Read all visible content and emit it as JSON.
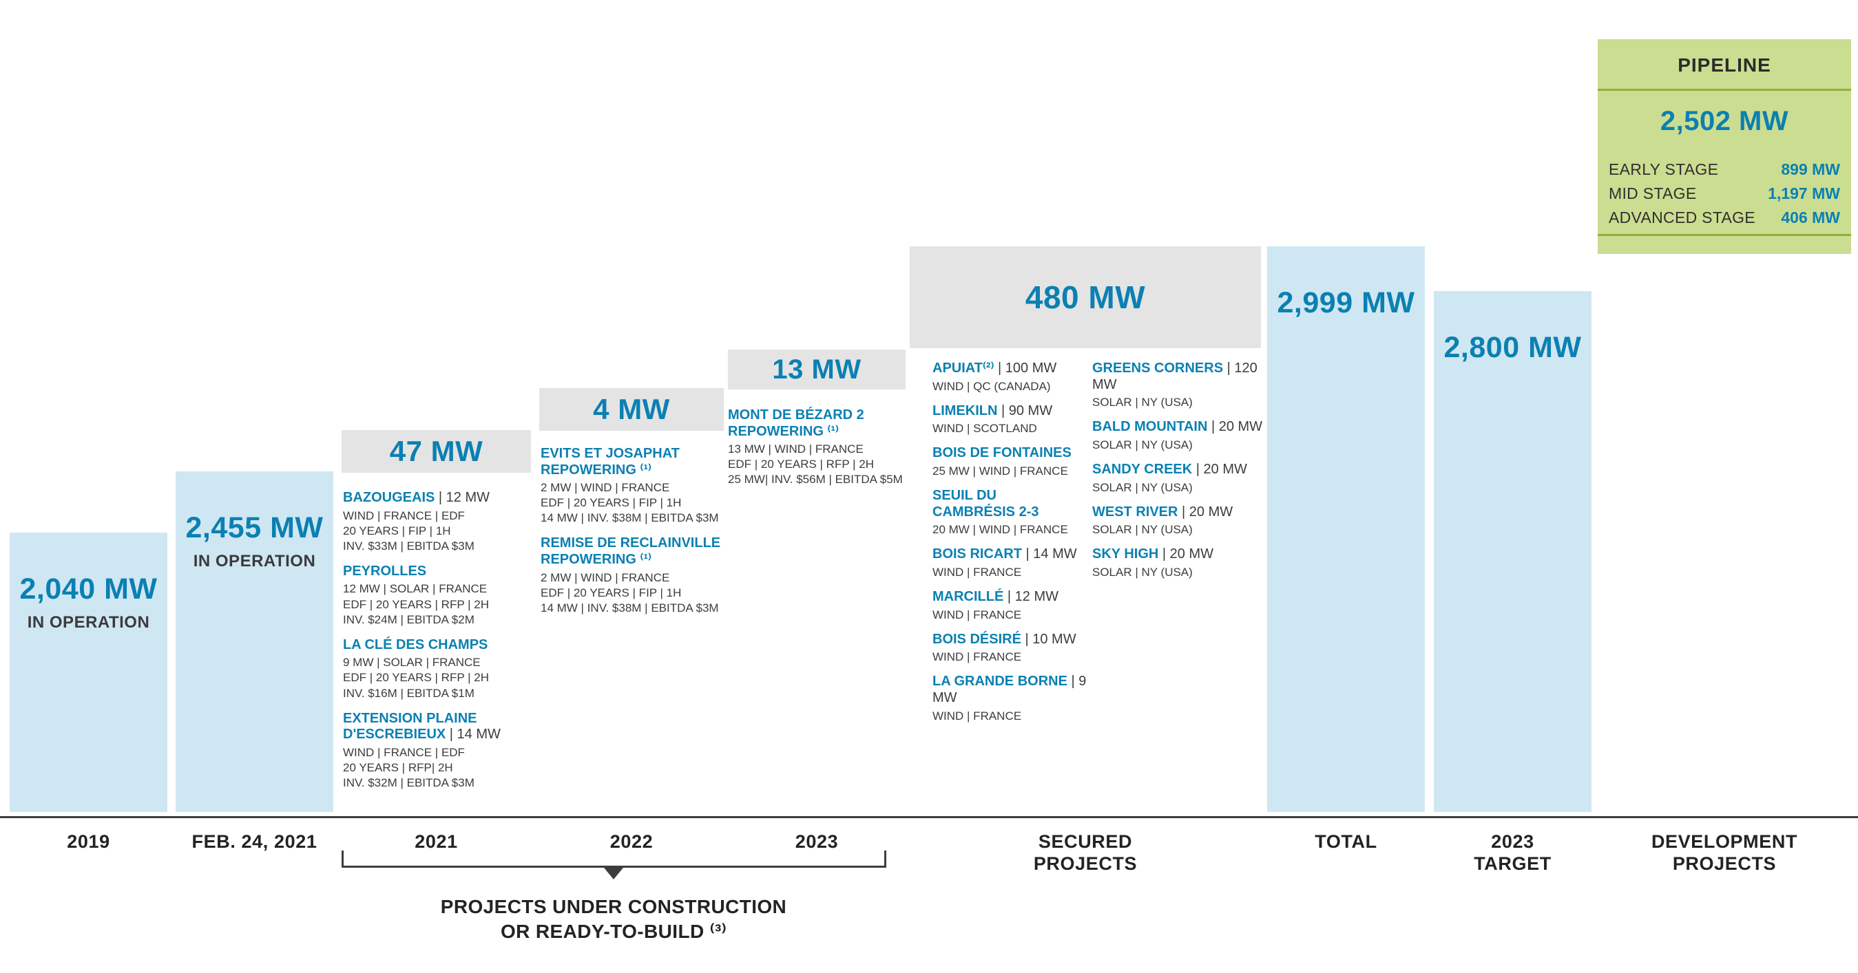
{
  "colors": {
    "bar_fill": "#cfe7f3",
    "step_header_fill": "#e4e4e4",
    "accent_blue": "#0b80b2",
    "pipeline_green": "#cbdd90",
    "pipeline_rule_green": "#8faf3c",
    "text_dark": "#3c3c3c"
  },
  "bars": {
    "y2019": {
      "value": "2,040 MW",
      "sub": "IN OPERATION"
    },
    "feb2021": {
      "value": "2,455 MW",
      "sub": "IN OPERATION"
    },
    "total": {
      "value": "2,999 MW"
    },
    "target": {
      "value": "2,800 MW"
    }
  },
  "construction_columns": [
    {
      "header": "47 MW",
      "projects": [
        {
          "name": "BAZOUGEAIS",
          "suffix": " | 12 MW",
          "details": [
            "WIND | FRANCE | EDF",
            "20 YEARS | FIP | 1H",
            "INV. $33M | EBITDA $3M"
          ]
        },
        {
          "name": "PEYROLLES",
          "details": [
            "12 MW  | SOLAR | FRANCE",
            "EDF | 20 YEARS | RFP | 2H",
            "INV. $24M | EBITDA $2M"
          ]
        },
        {
          "name": "LA CLÉ DES CHAMPS",
          "details": [
            "9 MW | SOLAR | FRANCE",
            "EDF | 20 YEARS | RFP | 2H",
            "INV. $16M | EBITDA $1M"
          ]
        },
        {
          "name": [
            "EXTENSION PLAINE",
            "D'ESCREBIEUX"
          ],
          "suffix": " | 14 MW",
          "details": [
            "WIND | FRANCE | EDF",
            "20 YEARS | RFP| 2H",
            "INV. $32M | EBITDA $3M"
          ]
        }
      ]
    },
    {
      "header": "4 MW",
      "projects": [
        {
          "name": [
            "EVITS ET JOSAPHAT",
            "REPOWERING ⁽¹⁾"
          ],
          "details": [
            "2 MW | WIND | FRANCE",
            "EDF | 20 YEARS | FIP | 1H",
            "14 MW | INV. $38M | EBITDA $3M"
          ]
        },
        {
          "name": [
            "REMISE DE RECLAINVILLE",
            "REPOWERING ⁽¹⁾"
          ],
          "details": [
            "2 MW | WIND | FRANCE",
            "EDF | 20 YEARS | FIP | 1H",
            "14 MW | INV. $38M | EBITDA $3M"
          ]
        }
      ]
    },
    {
      "header": "13 MW",
      "projects": [
        {
          "name": [
            "MONT DE BÉZARD 2",
            "REPOWERING ⁽¹⁾"
          ],
          "details": [
            "13 MW | WIND | FRANCE",
            "EDF | 20 YEARS | RFP | 2H",
            "25 MW| INV. $56M | EBITDA $5M"
          ]
        }
      ]
    }
  ],
  "secured": {
    "header": "480 MW",
    "col1": [
      {
        "name": "APUIAT⁽²⁾",
        "suffix": " | 100 MW",
        "details": [
          "WIND | QC (CANADA)"
        ]
      },
      {
        "name": "LIMEKILN",
        "suffix": " | 90 MW",
        "details": [
          "WIND | SCOTLAND"
        ]
      },
      {
        "name": "BOIS DE FONTAINES",
        "details": [
          "25 MW | WIND | FRANCE"
        ]
      },
      {
        "name": [
          "SEUIL DU",
          "CAMBRÉSIS 2-3"
        ],
        "details": [
          "20 MW | WIND | FRANCE"
        ]
      },
      {
        "name": "BOIS RICART",
        "suffix": " | 14 MW",
        "details": [
          "WIND | FRANCE"
        ]
      },
      {
        "name": "MARCILLÉ",
        "suffix": " | 12 MW",
        "details": [
          "WIND | FRANCE"
        ]
      },
      {
        "name": "BOIS DÉSIRÉ",
        "suffix": " | 10 MW",
        "details": [
          "WIND | FRANCE"
        ]
      },
      {
        "name": "LA GRANDE BORNE",
        "suffix": " | 9 MW",
        "details": [
          "WIND | FRANCE"
        ]
      }
    ],
    "col2": [
      {
        "name": "GREENS CORNERS",
        "suffix": " | 120 MW",
        "details": [
          "SOLAR | NY (USA)"
        ]
      },
      {
        "name": "BALD MOUNTAIN",
        "suffix": " | 20 MW",
        "details": [
          "SOLAR | NY (USA)"
        ]
      },
      {
        "name": "SANDY CREEK",
        "suffix": " | 20 MW",
        "details": [
          "SOLAR | NY (USA)"
        ]
      },
      {
        "name": "WEST RIVER",
        "suffix": " | 20 MW",
        "details": [
          "SOLAR | NY (USA)"
        ]
      },
      {
        "name": "SKY HIGH",
        "suffix": " | 20 MW",
        "details": [
          "SOLAR | NY (USA)"
        ]
      }
    ]
  },
  "pipeline": {
    "title": "PIPELINE",
    "value": "2,502 MW",
    "rows": [
      {
        "label": "EARLY STAGE",
        "value": "899 MW"
      },
      {
        "label": "MID STAGE",
        "value": "1,197 MW"
      },
      {
        "label": "ADVANCED STAGE",
        "value": "406 MW"
      }
    ]
  },
  "axis_labels": [
    "2019",
    "FEB. 24, 2021",
    "2021",
    "2022",
    "2023",
    [
      "SECURED",
      "PROJECTS"
    ],
    "TOTAL",
    [
      "2023",
      "TARGET"
    ],
    [
      "DEVELOPMENT",
      "PROJECTS"
    ]
  ],
  "bracket_note": [
    "PROJECTS UNDER CONSTRUCTION",
    "OR READY-TO-BUILD ⁽³⁾"
  ],
  "chart_data": {
    "type": "bar",
    "unit": "MW",
    "categories": [
      "2019",
      "FEB. 24, 2021",
      "2021",
      "2022",
      "2023",
      "SECURED PROJECTS",
      "TOTAL",
      "2023 TARGET",
      "DEVELOPMENT PROJECTS"
    ],
    "values": [
      2040,
      2455,
      47,
      4,
      13,
      480,
      2999,
      2800,
      2502
    ],
    "notes": {
      "in_operation_mw": {
        "2019": 2040,
        "FEB. 24, 2021": 2455
      },
      "projects_under_construction_or_ready_to_build_mw": {
        "2021": 47,
        "2022": 4,
        "2023": 13
      },
      "secured_projects_mw": 480,
      "total_mw": 2999,
      "target_2023_mw": 2800,
      "pipeline_mw": 2502,
      "pipeline_stages": {
        "EARLY STAGE": 899,
        "MID STAGE": 1197,
        "ADVANCED STAGE": 406
      }
    }
  }
}
